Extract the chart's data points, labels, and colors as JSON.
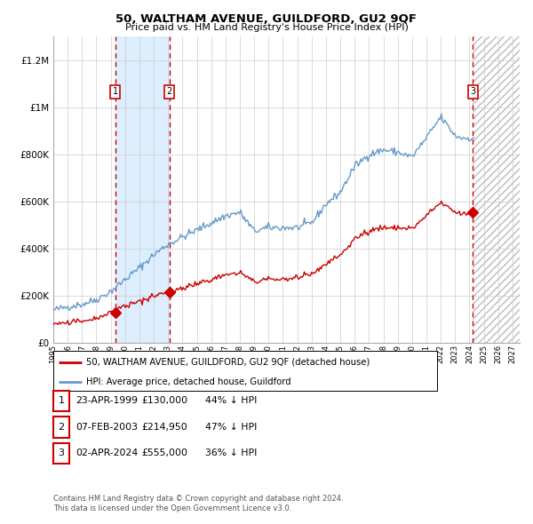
{
  "title": "50, WALTHAM AVENUE, GUILDFORD, GU2 9QF",
  "subtitle": "Price paid vs. HM Land Registry's House Price Index (HPI)",
  "legend_line1": "50, WALTHAM AVENUE, GUILDFORD, GU2 9QF (detached house)",
  "legend_line2": "HPI: Average price, detached house, Guildford",
  "transactions": [
    {
      "num": 1,
      "date": "23-APR-1999",
      "year": 1999.31,
      "price": 130000,
      "pct": "44% ↓ HPI"
    },
    {
      "num": 2,
      "date": "07-FEB-2003",
      "year": 2003.1,
      "price": 214950,
      "pct": "47% ↓ HPI"
    },
    {
      "num": 3,
      "date": "02-APR-2024",
      "year": 2024.25,
      "price": 555000,
      "pct": "36% ↓ HPI"
    }
  ],
  "hpi_color": "#6699cc",
  "price_color": "#cc0000",
  "dot_color": "#cc0000",
  "vline_color": "#cc0000",
  "shade_color": "#ddeeff",
  "background_color": "#ffffff",
  "grid_color": "#cccccc",
  "ylim": [
    0,
    1300000
  ],
  "xlim_start": 1995.0,
  "xlim_end": 2027.5,
  "future_start": 2024.25,
  "footnote1": "Contains HM Land Registry data © Crown copyright and database right 2024.",
  "footnote2": "This data is licensed under the Open Government Licence v3.0."
}
